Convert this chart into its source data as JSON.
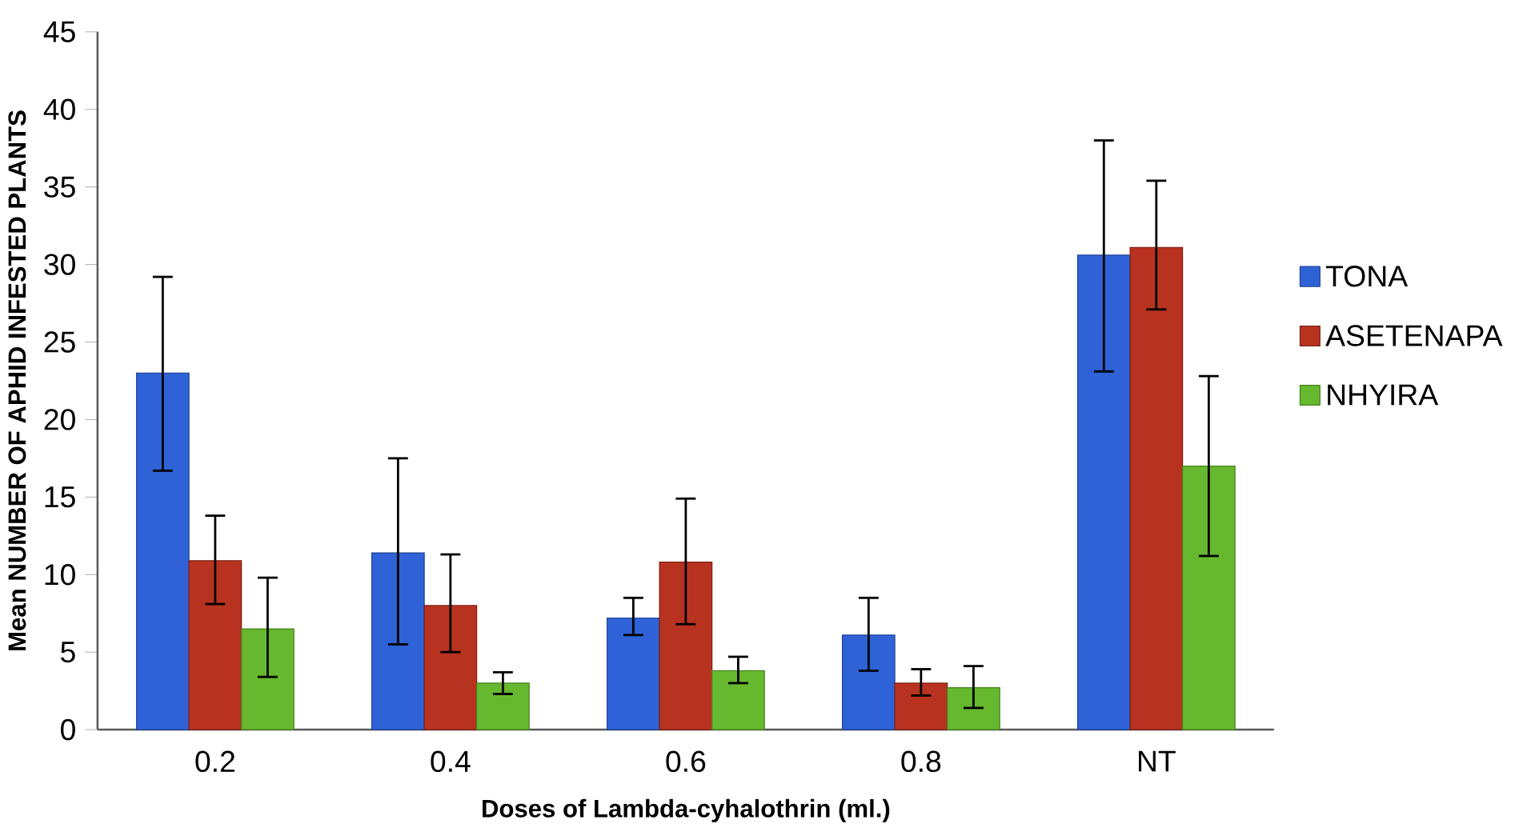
{
  "chart_data": {
    "type": "bar",
    "xlabel": "Doses of Lambda-cyhalothrin (ml.)",
    "ylabel": "Mean NUMBER OF APHID INFESTED PLANTS",
    "categories": [
      "0.2",
      "0.4",
      "0.6",
      "0.8",
      "NT"
    ],
    "series": [
      {
        "name": "TONA",
        "color": "#2f62d6",
        "values": [
          23.0,
          11.4,
          7.2,
          6.1,
          30.6
        ],
        "errors": [
          [
            16.7,
            29.2
          ],
          [
            5.5,
            17.5
          ],
          [
            6.1,
            8.5
          ],
          [
            3.8,
            8.5
          ],
          [
            23.1,
            38.0
          ]
        ]
      },
      {
        "name": "ASETENAPA",
        "color": "#b83220",
        "values": [
          10.9,
          8.0,
          10.8,
          3.0,
          31.1
        ],
        "errors": [
          [
            8.1,
            13.8
          ],
          [
            5.0,
            11.3
          ],
          [
            6.8,
            14.9
          ],
          [
            2.2,
            3.9
          ],
          [
            27.1,
            35.4
          ]
        ]
      },
      {
        "name": "NHYIRA",
        "color": "#66b82e",
        "values": [
          6.5,
          3.0,
          3.8,
          2.7,
          17.0
        ],
        "errors": [
          [
            3.4,
            9.8
          ],
          [
            2.3,
            3.7
          ],
          [
            3.0,
            4.7
          ],
          [
            1.4,
            4.1
          ],
          [
            11.2,
            22.8
          ]
        ]
      }
    ],
    "ylim": [
      0,
      45
    ],
    "yticks": [
      0,
      5,
      10,
      15,
      20,
      25,
      30,
      35,
      40,
      45
    ],
    "grid": false,
    "legend": "right"
  }
}
